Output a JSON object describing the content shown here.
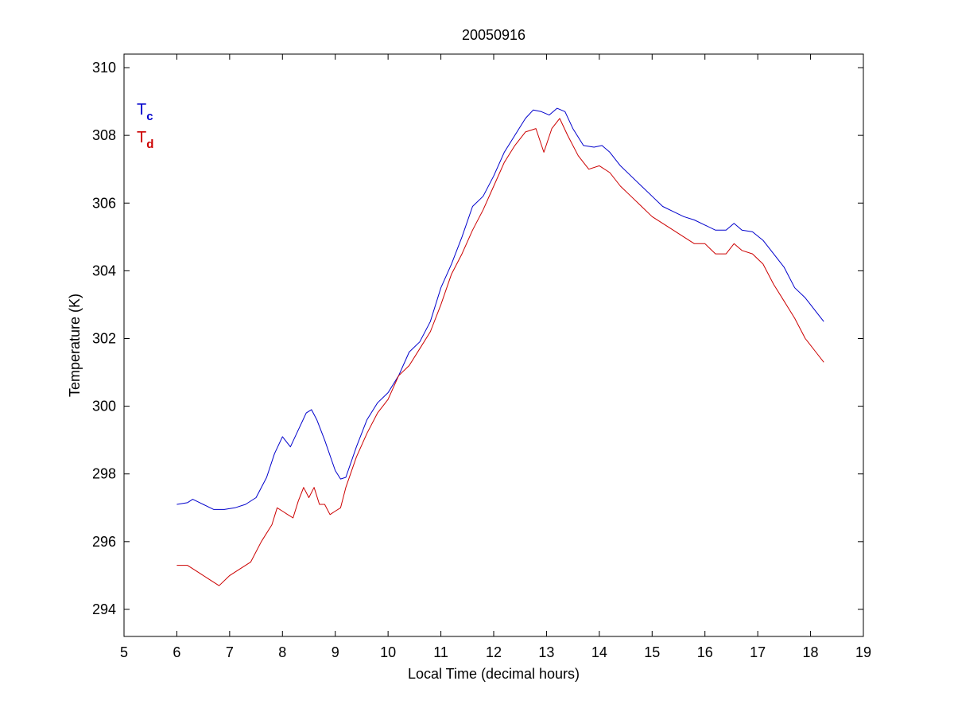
{
  "chart_data": {
    "type": "line",
    "title": "20050916",
    "xlabel": "Local Time (decimal hours)",
    "ylabel": "Temperature (K)",
    "xlim": [
      5,
      19
    ],
    "ylim": [
      293.2,
      310.4
    ],
    "xticks": [
      5,
      6,
      7,
      8,
      9,
      10,
      11,
      12,
      13,
      14,
      15,
      16,
      17,
      18,
      19
    ],
    "yticks": [
      294,
      296,
      298,
      300,
      302,
      304,
      306,
      308,
      310
    ],
    "grid": false,
    "legend": {
      "placement": "top-left",
      "entries": [
        {
          "symbol": "T",
          "subscript": "c",
          "color": "#0000cc"
        },
        {
          "symbol": "T",
          "subscript": "d",
          "color": "#cc0000"
        }
      ]
    },
    "series": [
      {
        "color": "#0000cc",
        "x": [
          6.0,
          6.2,
          6.3,
          6.5,
          6.7,
          6.9,
          7.1,
          7.3,
          7.5,
          7.7,
          7.85,
          8.0,
          8.15,
          8.3,
          8.45,
          8.55,
          8.65,
          8.8,
          9.0,
          9.1,
          9.2,
          9.4,
          9.6,
          9.8,
          10.0,
          10.2,
          10.4,
          10.6,
          10.8,
          11.0,
          11.2,
          11.4,
          11.6,
          11.8,
          12.0,
          12.2,
          12.4,
          12.6,
          12.75,
          12.9,
          13.05,
          13.2,
          13.35,
          13.5,
          13.7,
          13.9,
          14.05,
          14.2,
          14.4,
          14.6,
          14.8,
          15.0,
          15.2,
          15.4,
          15.6,
          15.8,
          16.0,
          16.2,
          16.4,
          16.55,
          16.7,
          16.9,
          17.1,
          17.3,
          17.5,
          17.7,
          17.9,
          18.1,
          18.25
        ],
        "y": [
          297.1,
          297.15,
          297.25,
          297.1,
          296.95,
          296.95,
          297.0,
          297.1,
          297.3,
          297.9,
          298.6,
          299.1,
          298.8,
          299.3,
          299.8,
          299.9,
          299.6,
          299.0,
          298.1,
          297.85,
          297.9,
          298.8,
          299.6,
          300.1,
          300.4,
          300.9,
          301.6,
          301.9,
          302.5,
          303.5,
          304.2,
          305.0,
          305.9,
          306.2,
          306.8,
          307.5,
          308.0,
          308.5,
          308.75,
          308.7,
          308.6,
          308.8,
          308.7,
          308.2,
          307.7,
          307.65,
          307.7,
          307.5,
          307.1,
          306.8,
          306.5,
          306.2,
          305.9,
          305.75,
          305.6,
          305.5,
          305.35,
          305.2,
          305.2,
          305.4,
          305.2,
          305.15,
          304.9,
          304.5,
          304.1,
          303.5,
          303.2,
          302.8,
          302.5
        ]
      },
      {
        "color": "#cc0000",
        "x": [
          6.0,
          6.2,
          6.4,
          6.6,
          6.8,
          7.0,
          7.2,
          7.4,
          7.6,
          7.8,
          7.9,
          8.0,
          8.1,
          8.2,
          8.3,
          8.4,
          8.5,
          8.6,
          8.7,
          8.8,
          8.9,
          9.0,
          9.1,
          9.2,
          9.4,
          9.6,
          9.8,
          10.0,
          10.2,
          10.4,
          10.6,
          10.8,
          11.0,
          11.2,
          11.4,
          11.6,
          11.8,
          12.0,
          12.2,
          12.4,
          12.6,
          12.8,
          12.95,
          13.1,
          13.25,
          13.4,
          13.6,
          13.8,
          14.0,
          14.2,
          14.4,
          14.6,
          14.8,
          15.0,
          15.2,
          15.4,
          15.6,
          15.8,
          16.0,
          16.2,
          16.4,
          16.55,
          16.7,
          16.9,
          17.1,
          17.3,
          17.5,
          17.7,
          17.9,
          18.1,
          18.25
        ],
        "y": [
          295.3,
          295.3,
          295.1,
          294.9,
          294.7,
          295.0,
          295.2,
          295.4,
          296.0,
          296.5,
          297.0,
          296.9,
          296.8,
          296.7,
          297.2,
          297.6,
          297.3,
          297.6,
          297.1,
          297.1,
          296.8,
          296.9,
          297.0,
          297.6,
          298.5,
          299.2,
          299.8,
          300.2,
          300.9,
          301.2,
          301.7,
          302.2,
          303.0,
          303.9,
          304.5,
          305.2,
          305.8,
          306.5,
          307.2,
          307.7,
          308.1,
          308.2,
          307.5,
          308.2,
          308.5,
          308.0,
          307.4,
          307.0,
          307.1,
          306.9,
          306.5,
          306.2,
          305.9,
          305.6,
          305.4,
          305.2,
          305.0,
          304.8,
          304.8,
          304.5,
          304.5,
          304.8,
          304.6,
          304.5,
          304.2,
          303.6,
          303.1,
          302.6,
          302.0,
          301.6,
          301.3
        ]
      }
    ]
  }
}
